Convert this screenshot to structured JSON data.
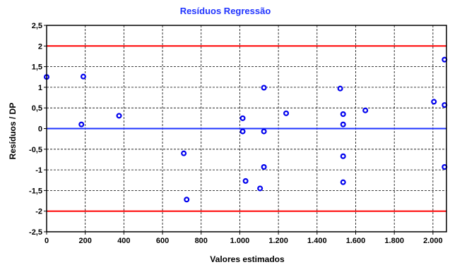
{
  "chart_data": {
    "type": "scatter",
    "title": "Resíduos Regressão",
    "xlabel": "Valores estimados",
    "ylabel": "Resíduos / DP",
    "xlim": [
      0,
      2070
    ],
    "ylim": [
      -2.5,
      2.5
    ],
    "grid": true,
    "x_ticks": [
      {
        "value": 0,
        "label": "0"
      },
      {
        "value": 200,
        "label": "200"
      },
      {
        "value": 400,
        "label": "400"
      },
      {
        "value": 600,
        "label": "600"
      },
      {
        "value": 800,
        "label": "800"
      },
      {
        "value": 1000,
        "label": "1.000"
      },
      {
        "value": 1200,
        "label": "1.200"
      },
      {
        "value": 1400,
        "label": "1.400"
      },
      {
        "value": 1600,
        "label": "1.600"
      },
      {
        "value": 1800,
        "label": "1.800"
      },
      {
        "value": 2000,
        "label": "2.000"
      }
    ],
    "y_ticks": [
      {
        "value": 2.5,
        "label": "2,5"
      },
      {
        "value": 2,
        "label": "2"
      },
      {
        "value": 1.5,
        "label": "1,5"
      },
      {
        "value": 1,
        "label": "1"
      },
      {
        "value": 0.5,
        "label": "0,5"
      },
      {
        "value": 0,
        "label": "0"
      },
      {
        "value": -0.5,
        "label": "-0,5"
      },
      {
        "value": -1,
        "label": "-1"
      },
      {
        "value": -1.5,
        "label": "-1,5"
      },
      {
        "value": -2,
        "label": "-2"
      },
      {
        "value": -2.5,
        "label": "-2,5"
      }
    ],
    "reference_lines": [
      {
        "y": 2,
        "color": "#ff0000"
      },
      {
        "y": 0,
        "color": "#1f33ff"
      },
      {
        "y": -2,
        "color": "#ff0000"
      }
    ],
    "series": [
      {
        "color": "#0000ee",
        "points": [
          {
            "x": 0,
            "y": 1.25
          },
          {
            "x": 190,
            "y": 1.26
          },
          {
            "x": 180,
            "y": 0.1
          },
          {
            "x": 375,
            "y": 0.31
          },
          {
            "x": 710,
            "y": -0.6
          },
          {
            "x": 725,
            "y": -1.72
          },
          {
            "x": 1015,
            "y": 0.25
          },
          {
            "x": 1015,
            "y": -0.07
          },
          {
            "x": 1030,
            "y": -1.27
          },
          {
            "x": 1105,
            "y": -1.45
          },
          {
            "x": 1125,
            "y": 0.99
          },
          {
            "x": 1125,
            "y": -0.07
          },
          {
            "x": 1125,
            "y": -0.93
          },
          {
            "x": 1240,
            "y": 0.37
          },
          {
            "x": 1520,
            "y": 0.97
          },
          {
            "x": 1535,
            "y": 0.35
          },
          {
            "x": 1535,
            "y": 0.1
          },
          {
            "x": 1535,
            "y": -0.67
          },
          {
            "x": 1535,
            "y": -1.3
          },
          {
            "x": 1650,
            "y": 0.44
          },
          {
            "x": 2005,
            "y": 0.65
          },
          {
            "x": 2060,
            "y": 1.67
          },
          {
            "x": 2060,
            "y": 0.57
          },
          {
            "x": 2060,
            "y": -0.93
          }
        ]
      }
    ]
  }
}
